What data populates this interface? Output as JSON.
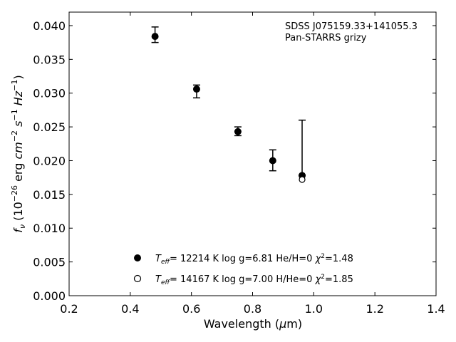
{
  "chart_data": {
    "type": "scatter",
    "title": "",
    "annotation": [
      "SDSS J075159.33+141055.3",
      "Pan-STARRS grizy"
    ],
    "xlabel": {
      "prefix": "Wavelength (",
      "mu": "μ",
      "suffix": "m)"
    },
    "ylabel": {
      "f": "f",
      "nu": "ν",
      "rest": " (10",
      "exp1": "−26",
      "mid": " erg ",
      "cm": "cm",
      "exp2": "−2",
      "s": "s",
      "exp3": "−1",
      "hz": "Hz",
      "exp4": "−1",
      "close": ")"
    },
    "xlim": [
      0.2,
      1.4
    ],
    "ylim": [
      0.0,
      0.042
    ],
    "xticks": [
      "0.2",
      "0.4",
      "0.6",
      "0.8",
      "1.0",
      "1.2",
      "1.4"
    ],
    "yticks": [
      "0.000",
      "0.005",
      "0.010",
      "0.015",
      "0.020",
      "0.025",
      "0.030",
      "0.035",
      "0.040"
    ],
    "grid": false,
    "legend_position": "bottom-center",
    "observed": {
      "marker": "filled-circle",
      "x": [
        0.481,
        0.617,
        0.752,
        0.866,
        0.962
      ],
      "y": [
        0.0384,
        0.0306,
        0.0243,
        0.02,
        0.0178
      ],
      "yerr_low": [
        0.0375,
        0.0293,
        0.0237,
        0.0185,
        0.0178
      ],
      "yerr_high": [
        0.0398,
        0.0312,
        0.025,
        0.0216,
        0.026
      ]
    },
    "series": [
      {
        "marker": "filled-circle",
        "values_x": [
          0.962
        ],
        "values_y": [
          0.0178
        ],
        "legend": {
          "T": "T",
          "eff": "eff",
          "text": "= 12214 K  log g=6.81  He/H=0  ",
          "chi": "χ",
          "chi_exp": "2",
          "chi_val": "=1.48"
        }
      },
      {
        "marker": "open-circle",
        "values_x": [
          0.962
        ],
        "values_y": [
          0.0172
        ],
        "legend": {
          "T": "T",
          "eff": "eff",
          "text": "= 14167 K  log g=7.00  H/He=0  ",
          "chi": "χ",
          "chi_exp": "2",
          "chi_val": "=1.85"
        }
      }
    ],
    "colors": {
      "marker": "#000000",
      "axes": "#000000",
      "background": "#ffffff"
    }
  }
}
